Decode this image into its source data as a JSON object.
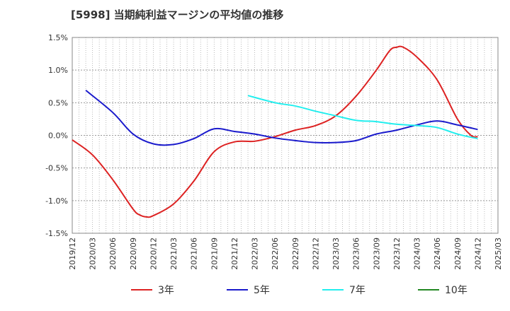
{
  "chart_data": {
    "type": "line",
    "title": "[5998]  当期純利益マージンの平均値の推移",
    "y_ticks": [
      "1.5%",
      "1.0%",
      "0.5%",
      "0.0%",
      "-0.5%",
      "-1.0%",
      "-1.5%"
    ],
    "ylim": [
      -1.5,
      1.5
    ],
    "x_ticks": [
      "2019/12",
      "2020/03",
      "2020/06",
      "2020/09",
      "2020/12",
      "2021/03",
      "2021/06",
      "2021/09",
      "2021/12",
      "2022/03",
      "2022/06",
      "2022/09",
      "2022/12",
      "2023/03",
      "2023/06",
      "2023/09",
      "2023/12",
      "2024/03",
      "2024/06",
      "2024/09",
      "2024/12",
      "2025/03"
    ],
    "grid": true,
    "legend_position": "bottom",
    "series": [
      {
        "name": "3年",
        "color": "#dd2222",
        "points": [
          [
            "2019/12",
            -0.07
          ],
          [
            "2020/03",
            -0.3
          ],
          [
            "2020/06",
            -0.68
          ],
          [
            "2020/09",
            -1.13
          ],
          [
            "2020/10",
            -1.22
          ],
          [
            "2020/11",
            -1.25
          ],
          [
            "2020/12",
            -1.23
          ],
          [
            "2021/03",
            -1.05
          ],
          [
            "2021/06",
            -0.7
          ],
          [
            "2021/09",
            -0.25
          ],
          [
            "2021/12",
            -0.1
          ],
          [
            "2022/03",
            -0.09
          ],
          [
            "2022/06",
            -0.02
          ],
          [
            "2022/09",
            0.08
          ],
          [
            "2022/12",
            0.15
          ],
          [
            "2023/03",
            0.3
          ],
          [
            "2023/06",
            0.6
          ],
          [
            "2023/09",
            1.0
          ],
          [
            "2023/11",
            1.3
          ],
          [
            "2023/12",
            1.35
          ],
          [
            "2024/01",
            1.35
          ],
          [
            "2024/03",
            1.2
          ],
          [
            "2024/06",
            0.85
          ],
          [
            "2024/09",
            0.25
          ],
          [
            "2024/11",
            0.0
          ],
          [
            "2024/12",
            -0.02
          ]
        ]
      },
      {
        "name": "5年",
        "color": "#1a1acc",
        "points": [
          [
            "2020/02",
            0.69
          ],
          [
            "2020/06",
            0.35
          ],
          [
            "2020/09",
            0.02
          ],
          [
            "2020/12",
            -0.13
          ],
          [
            "2021/03",
            -0.14
          ],
          [
            "2021/06",
            -0.05
          ],
          [
            "2021/09",
            0.1
          ],
          [
            "2021/12",
            0.06
          ],
          [
            "2022/03",
            0.02
          ],
          [
            "2022/06",
            -0.04
          ],
          [
            "2022/09",
            -0.08
          ],
          [
            "2022/12",
            -0.11
          ],
          [
            "2023/03",
            -0.11
          ],
          [
            "2023/06",
            -0.08
          ],
          [
            "2023/09",
            0.02
          ],
          [
            "2023/12",
            0.08
          ],
          [
            "2024/03",
            0.16
          ],
          [
            "2024/06",
            0.22
          ],
          [
            "2024/09",
            0.16
          ],
          [
            "2024/12",
            0.09
          ]
        ]
      },
      {
        "name": "7年",
        "color": "#22eeee",
        "points": [
          [
            "2022/02",
            0.61
          ],
          [
            "2022/06",
            0.5
          ],
          [
            "2022/09",
            0.45
          ],
          [
            "2022/12",
            0.37
          ],
          [
            "2023/03",
            0.3
          ],
          [
            "2023/06",
            0.23
          ],
          [
            "2023/09",
            0.21
          ],
          [
            "2023/12",
            0.17
          ],
          [
            "2024/03",
            0.15
          ],
          [
            "2024/06",
            0.12
          ],
          [
            "2024/09",
            0.02
          ],
          [
            "2024/12",
            -0.05
          ]
        ]
      },
      {
        "name": "10年",
        "color": "#228822",
        "points": []
      }
    ]
  }
}
